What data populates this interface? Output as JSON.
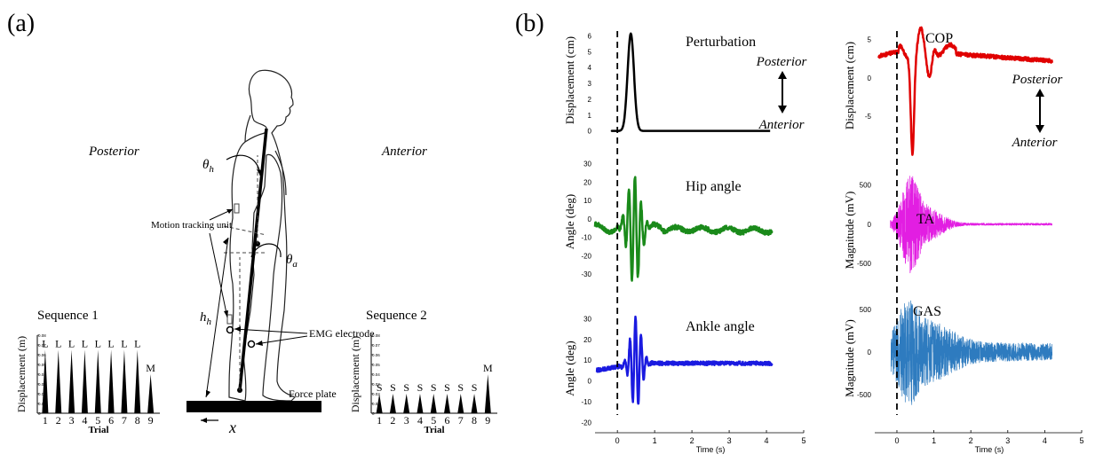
{
  "panel_labels": {
    "a": "(a)",
    "b": "(b)"
  },
  "diagram": {
    "posterior": "Posterior",
    "anterior": "Anterior",
    "theta_h": "θ",
    "theta_h_sub": "h",
    "theta_a": "θ",
    "theta_a_sub": "a",
    "h_h": "h",
    "h_h_sub": "h",
    "motion_tracking": "Motion tracking unit",
    "emg": "EMG electrode",
    "force_plate": "Force plate",
    "x": "x"
  },
  "chart_data": [
    {
      "id": "seq1",
      "type": "bar",
      "title": "Sequence 1",
      "xlabel": "Trial",
      "ylabel": "Displacement (m)",
      "categories": [
        "1",
        "2",
        "3",
        "4",
        "5",
        "6",
        "7",
        "8",
        "9"
      ],
      "values": [
        0.065,
        0.065,
        0.065,
        0.065,
        0.065,
        0.065,
        0.065,
        0.065,
        0.04
      ],
      "point_labels": [
        "L",
        "L",
        "L",
        "L",
        "L",
        "L",
        "L",
        "L",
        "M"
      ],
      "yticks": [
        "0",
        "0.01",
        "0.02",
        "0.03",
        "0.04",
        "0.05",
        "0.06",
        "0.07",
        "0.08"
      ],
      "ylim": [
        0,
        0.08
      ]
    },
    {
      "id": "seq2",
      "type": "bar",
      "title": "Sequence 2",
      "xlabel": "Trial",
      "ylabel": "Displacement (m)",
      "categories": [
        "1",
        "2",
        "3",
        "4",
        "5",
        "6",
        "7",
        "8",
        "9"
      ],
      "values": [
        0.02,
        0.02,
        0.02,
        0.02,
        0.02,
        0.02,
        0.02,
        0.02,
        0.04
      ],
      "point_labels": [
        "S",
        "S",
        "S",
        "S",
        "S",
        "S",
        "S",
        "S",
        "M"
      ],
      "yticks": [
        "0",
        "0.01",
        "0.02",
        "0.03",
        "0.04",
        "0.05",
        "0.06",
        "0.07",
        "0.08"
      ],
      "ylim": [
        0,
        0.08
      ]
    },
    {
      "id": "perturbation",
      "type": "line",
      "title": "Perturbation",
      "ylabel": "Displacement (cm)",
      "color": "#000000",
      "ylim": [
        -0.3,
        6.7
      ],
      "xlim": [
        -0.6,
        5
      ],
      "yticks": [
        0,
        1,
        2,
        3,
        4,
        5,
        6
      ],
      "xticks": [],
      "annotations": {
        "top": "Posterior",
        "bottom": "Anterior"
      }
    },
    {
      "id": "cop",
      "type": "line",
      "title": "COP",
      "ylabel": "Displacement (cm)",
      "color": "#e00000",
      "ylim": [
        -10.5,
        8.5
      ],
      "xlim": [
        -0.6,
        5
      ],
      "yticks": [
        -5,
        0,
        5
      ],
      "xticks": [],
      "annotations": {
        "top": "Posterior",
        "bottom": "Anterior"
      }
    },
    {
      "id": "hip",
      "type": "line",
      "title": "Hip angle",
      "ylabel": "Angle (deg)",
      "color": "#1a8a1a",
      "ylim": [
        -43,
        40
      ],
      "xlim": [
        -0.6,
        5
      ],
      "yticks": [
        -30,
        -20,
        -10,
        0,
        10,
        20,
        30
      ],
      "xticks": []
    },
    {
      "id": "ta",
      "type": "line",
      "title": "TA",
      "ylabel": "Magnitude (mV)",
      "color": "#e21ee2",
      "ylim": [
        -950,
        800
      ],
      "xlim": [
        -0.6,
        5
      ],
      "yticks": [
        -500,
        0,
        500
      ],
      "xticks": []
    },
    {
      "id": "ankle",
      "type": "line",
      "title": "Ankle angle",
      "ylabel": "Angle (deg)",
      "xlabel": "Time (s)",
      "color": "#1a1ae0",
      "ylim": [
        -25,
        37
      ],
      "xlim": [
        -0.6,
        5
      ],
      "yticks": [
        -20,
        -10,
        0,
        10,
        20,
        30
      ],
      "xticks": [
        0,
        1,
        2,
        3,
        4,
        5
      ]
    },
    {
      "id": "gas",
      "type": "line",
      "title": "GAS",
      "ylabel": "Magnitude (mV)",
      "xlabel": "Time (s)",
      "color": "#2e7bbf",
      "ylim": [
        -950,
        800
      ],
      "xlim": [
        -0.6,
        5
      ],
      "yticks": [
        -500,
        0,
        500
      ],
      "xticks": [
        0,
        1,
        2,
        3,
        4,
        5
      ]
    }
  ]
}
